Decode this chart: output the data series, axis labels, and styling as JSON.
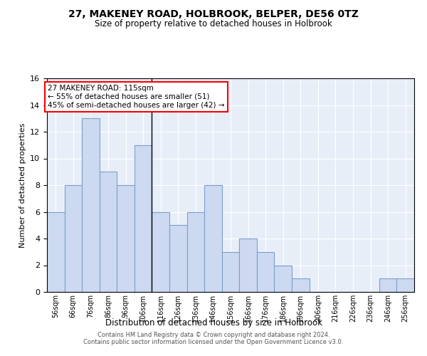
{
  "title": "27, MAKENEY ROAD, HOLBROOK, BELPER, DE56 0TZ",
  "subtitle": "Size of property relative to detached houses in Holbrook",
  "xlabel": "Distribution of detached houses by size in Holbrook",
  "ylabel": "Number of detached properties",
  "bar_color": "#ccd9f0",
  "bar_edge_color": "#7aa0cc",
  "background_color": "#e8eef8",
  "categories": [
    "56sqm",
    "66sqm",
    "76sqm",
    "86sqm",
    "96sqm",
    "106sqm",
    "116sqm",
    "126sqm",
    "136sqm",
    "146sqm",
    "156sqm",
    "166sqm",
    "176sqm",
    "186sqm",
    "196sqm",
    "206sqm",
    "216sqm",
    "226sqm",
    "236sqm",
    "246sqm",
    "256sqm"
  ],
  "values": [
    6,
    8,
    13,
    9,
    8,
    11,
    6,
    5,
    6,
    8,
    3,
    4,
    3,
    2,
    1,
    0,
    0,
    0,
    0,
    1,
    1
  ],
  "ylim": [
    0,
    16
  ],
  "yticks": [
    0,
    2,
    4,
    6,
    8,
    10,
    12,
    14,
    16
  ],
  "annotation_text": "27 MAKENEY ROAD: 115sqm\n← 55% of detached houses are smaller (51)\n45% of semi-detached houses are larger (42) →",
  "vline_x": 6.0,
  "footer_line1": "Contains HM Land Registry data © Crown copyright and database right 2024.",
  "footer_line2": "Contains public sector information licensed under the Open Government Licence v3.0."
}
